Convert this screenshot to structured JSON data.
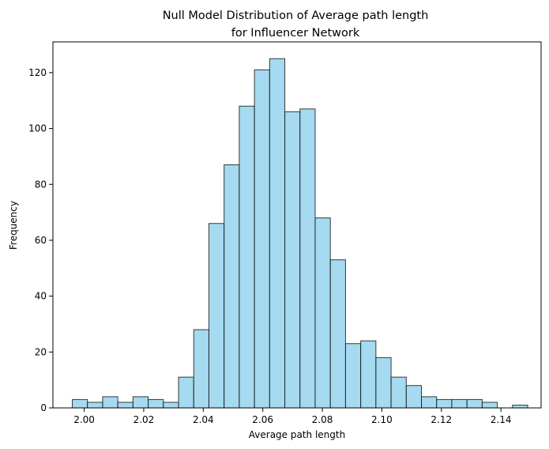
{
  "chart_data": {
    "type": "bar",
    "title": [
      "Null Model Distribution of Average path length",
      "for Influencer Network"
    ],
    "xlabel": "Average path length",
    "ylabel": "Frequency",
    "xlim": [
      1.9895,
      2.1535
    ],
    "ylim": [
      0,
      131
    ],
    "xticks": [
      "2.00",
      "2.02",
      "2.04",
      "2.06",
      "2.08",
      "2.10",
      "2.12",
      "2.14"
    ],
    "yticks": [
      "0",
      "20",
      "40",
      "60",
      "80",
      "100",
      "120"
    ],
    "bar_color": "#87ceeb",
    "edge_color": "#1a1a1a",
    "bin_start": 1.996,
    "bin_width": 0.0051,
    "values": [
      3,
      2,
      4,
      2,
      4,
      3,
      2,
      11,
      28,
      66,
      87,
      108,
      121,
      125,
      106,
      107,
      68,
      53,
      23,
      24,
      18,
      11,
      8,
      4,
      3,
      3,
      3,
      2,
      0,
      1
    ],
    "grid": false
  }
}
